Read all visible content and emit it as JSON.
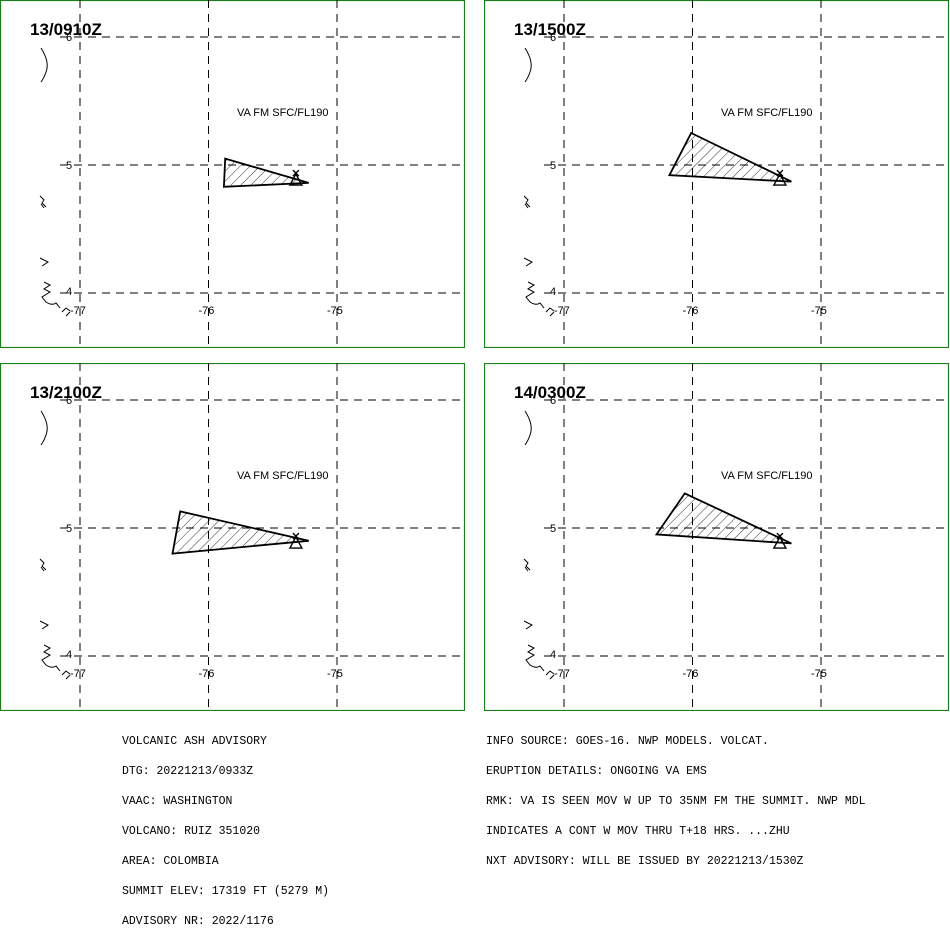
{
  "panels": [
    {
      "time": "13/0910Z",
      "level": "VA FM SFC/FL190",
      "polygon": [
        [
          -75.87,
          5.05
        ],
        [
          -75.22,
          4.86
        ],
        [
          -75.88,
          4.83
        ]
      ]
    },
    {
      "time": "13/1500Z",
      "level": "VA FM SFC/FL190",
      "polygon": [
        [
          -76.01,
          5.25
        ],
        [
          -75.23,
          4.87
        ],
        [
          -76.18,
          4.92
        ]
      ]
    },
    {
      "time": "13/2100Z",
      "level": "VA FM SFC/FL190",
      "polygon": [
        [
          -76.22,
          5.13
        ],
        [
          -75.22,
          4.9
        ],
        [
          -76.28,
          4.8
        ]
      ]
    },
    {
      "time": "14/0300Z",
      "level": "VA FM SFC/FL190",
      "polygon": [
        [
          -76.06,
          5.27
        ],
        [
          -75.23,
          4.88
        ],
        [
          -76.28,
          4.95
        ]
      ]
    }
  ],
  "grid": {
    "lons": [
      "-77",
      "-76",
      "-75"
    ],
    "lats": [
      "6",
      "5",
      "4"
    ]
  },
  "volcano": {
    "name": "RUIZ",
    "lon": -75.32,
    "lat": 4.89
  },
  "advisory_left": [
    "VOLCANIC ASH ADVISORY",
    "DTG: 20221213/0933Z",
    "VAAC: WASHINGTON",
    "VOLCANO: RUIZ 351020",
    "AREA: COLOMBIA",
    "SUMMIT ELEV: 17319 FT (5279 M)",
    "ADVISORY NR: 2022/1176"
  ],
  "advisory_right": [
    "INFO SOURCE: GOES-16. NWP MODELS. VOLCAT.",
    "ERUPTION DETAILS: ONGOING VA EMS",
    "RMK: VA IS SEEN MOV W UP TO 35NM FM THE SUMMIT. NWP MDL",
    "INDICATES A CONT W MOV THRU T+18 HRS. ...ZHU",
    "NXT ADVISORY: WILL BE ISSUED BY 20221213/1530Z"
  ],
  "colors": {
    "frame": "#1a7f1a",
    "lines": "#000000",
    "background": "#ffffff"
  }
}
